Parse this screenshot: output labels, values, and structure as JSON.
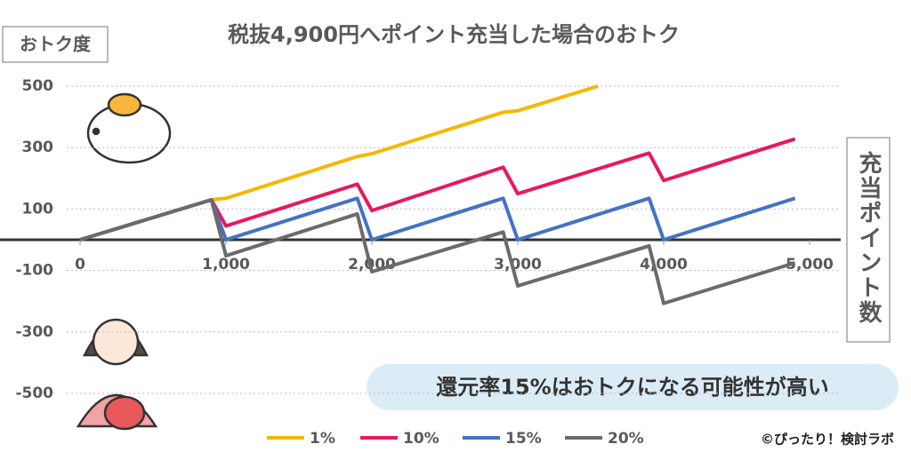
{
  "chart_data": {
    "type": "line",
    "title": "税抜4,900円へポイント充当した場合のおトク",
    "y_label": "おトク度",
    "x_label": "充当ポイント数",
    "annotation": "還元率15%はおトクになる可能性が高い",
    "credit": "©ぴったり！検討ラボ",
    "xlim": [
      0,
      5000
    ],
    "ylim": [
      -500,
      500
    ],
    "xticks": [
      0,
      {
        "value": 1000,
        "label": "1,000"
      },
      {
        "value": 2000,
        "label": "2,000"
      },
      {
        "value": 3000,
        "label": "3,000"
      },
      {
        "value": 4000,
        "label": "4,000"
      },
      {
        "value": 5000,
        "label": "5,000"
      }
    ],
    "yticks": [
      -500,
      -300,
      -100,
      100,
      300,
      500
    ],
    "grid": true,
    "series": [
      {
        "name": "1%",
        "color": "#f5b800",
        "x": [
          0,
          900,
          1000,
          1900,
          2000,
          2900,
          3000,
          3550
        ],
        "values": [
          0,
          130,
          135,
          271,
          280,
          415,
          420,
          500
        ]
      },
      {
        "name": "10%",
        "color": "#e8185e",
        "x": [
          0,
          900,
          1000,
          1900,
          2000,
          2900,
          3000,
          3900,
          4000,
          4900
        ],
        "values": [
          0,
          130,
          45,
          181,
          95,
          236,
          150,
          282,
          193,
          328
        ]
      },
      {
        "name": "15%",
        "color": "#4472c4",
        "x": [
          0,
          900,
          1000,
          1900,
          2000,
          2900,
          3000,
          3900,
          4000,
          4900
        ],
        "values": [
          0,
          130,
          0,
          135,
          0,
          135,
          0,
          135,
          0,
          135
        ]
      },
      {
        "name": "20%",
        "color": "#6b6b6b",
        "x": [
          0,
          900,
          1000,
          1900,
          2000,
          2900,
          3000,
          3900,
          4000,
          4900
        ],
        "values": [
          0,
          130,
          -52,
          84,
          -104,
          25,
          -150,
          -20,
          -207,
          -75
        ]
      }
    ]
  }
}
